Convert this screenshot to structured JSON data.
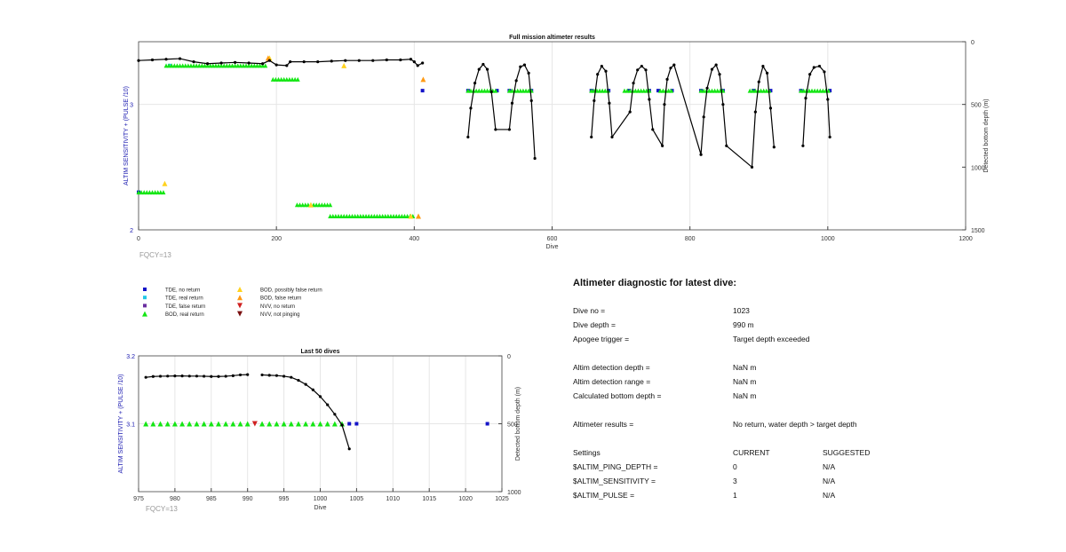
{
  "colors": {
    "tde_no": "#1414c8",
    "tde_real": "#23c8e6",
    "tde_false": "#6a2ea0",
    "bod_real": "#14e614",
    "bod_possibly_false": "#ffd21e",
    "bod_false": "#ff9a14",
    "nvv_no": "#d02020",
    "nvv_not": "#7a0f0f",
    "profile": "#000000",
    "left_axis": "#1a1ab0"
  },
  "fqcy_label_top": "FQCY=13",
  "fqcy_label_bottom": "FQCY=13",
  "legend": [
    {
      "label": "TDE, no return",
      "marker": "square",
      "color_key": "tde_no"
    },
    {
      "label": "TDE, real return",
      "marker": "square",
      "color_key": "tde_real"
    },
    {
      "label": "TDE, false return",
      "marker": "square",
      "color_key": "tde_false"
    },
    {
      "label": "BOD, real return",
      "marker": "triangle-up",
      "color_key": "bod_real"
    },
    {
      "label": "BOD, possibly false return",
      "marker": "triangle-up",
      "color_key": "bod_possibly_false"
    },
    {
      "label": "BOD, false return",
      "marker": "triangle-up",
      "color_key": "bod_false"
    },
    {
      "label": "NVV, no return",
      "marker": "triangle-down",
      "color_key": "nvv_no"
    },
    {
      "label": "NVV, not pinging",
      "marker": "triangle-down",
      "color_key": "nvv_not"
    }
  ],
  "chart_data": [
    {
      "type": "scatter",
      "title": "Full mission altimeter results",
      "xlabel": "Dive",
      "ylabel_left": "ALTIM SENSITIVITY + (PULSE /10)",
      "ylabel_right": "Detected bottom depth (m)",
      "xlim": [
        0,
        1200
      ],
      "ylim_left": [
        2,
        3.5
      ],
      "ylim_right": [
        1500,
        0
      ],
      "xticks": [
        0,
        200,
        400,
        600,
        800,
        1000,
        1200
      ],
      "yticks_left": [
        2,
        3
      ],
      "yticks_right": [
        0,
        500,
        1000,
        1500
      ],
      "grid": true,
      "depth_profile": [
        [
          0,
          150
        ],
        [
          20,
          145
        ],
        [
          40,
          140
        ],
        [
          60,
          135
        ],
        [
          80,
          160
        ],
        [
          100,
          175
        ],
        [
          120,
          170
        ],
        [
          140,
          165
        ],
        [
          160,
          170
        ],
        [
          180,
          175
        ],
        [
          190,
          150
        ],
        [
          200,
          185
        ],
        [
          215,
          190
        ],
        [
          220,
          160
        ],
        [
          240,
          160
        ],
        [
          260,
          160
        ],
        [
          280,
          155
        ],
        [
          300,
          150
        ],
        [
          320,
          150
        ],
        [
          340,
          150
        ],
        [
          360,
          145
        ],
        [
          380,
          145
        ],
        [
          395,
          140
        ],
        [
          400,
          160
        ],
        [
          405,
          190
        ],
        [
          412,
          170
        ],
        [
          478,
          760
        ],
        [
          482,
          530
        ],
        [
          488,
          330
        ],
        [
          494,
          220
        ],
        [
          500,
          180
        ],
        [
          506,
          220
        ],
        [
          512,
          400
        ],
        [
          518,
          700
        ],
        [
          538,
          700
        ],
        [
          542,
          490
        ],
        [
          548,
          310
        ],
        [
          554,
          200
        ],
        [
          560,
          185
        ],
        [
          566,
          250
        ],
        [
          570,
          470
        ],
        [
          575,
          930
        ],
        [
          657,
          760
        ],
        [
          661,
          470
        ],
        [
          666,
          260
        ],
        [
          672,
          195
        ],
        [
          678,
          235
        ],
        [
          683,
          490
        ],
        [
          687,
          760
        ],
        [
          713,
          560
        ],
        [
          718,
          330
        ],
        [
          724,
          225
        ],
        [
          730,
          195
        ],
        [
          736,
          225
        ],
        [
          741,
          460
        ],
        [
          746,
          700
        ],
        [
          760,
          830
        ],
        [
          763,
          500
        ],
        [
          767,
          300
        ],
        [
          772,
          210
        ],
        [
          777,
          185
        ],
        [
          816,
          900
        ],
        [
          820,
          600
        ],
        [
          825,
          370
        ],
        [
          832,
          220
        ],
        [
          838,
          185
        ],
        [
          843,
          260
        ],
        [
          848,
          500
        ],
        [
          853,
          830
        ],
        [
          890,
          1000
        ],
        [
          895,
          560
        ],
        [
          900,
          320
        ],
        [
          906,
          195
        ],
        [
          912,
          250
        ],
        [
          917,
          530
        ],
        [
          922,
          840
        ],
        [
          964,
          830
        ],
        [
          968,
          450
        ],
        [
          974,
          260
        ],
        [
          980,
          205
        ],
        [
          988,
          195
        ],
        [
          995,
          240
        ],
        [
          1000,
          460
        ],
        [
          1003,
          760
        ]
      ],
      "markers": [
        {
          "kind": "tde_no",
          "points": [
            [
              0,
              2.3
            ],
            [
              412,
              3.11
            ],
            [
              478,
              3.11
            ],
            [
              520,
              3.11
            ],
            [
              538,
              3.11
            ],
            [
              570,
              3.11
            ],
            [
              657,
              3.11
            ],
            [
              682,
              3.11
            ],
            [
              712,
              3.11
            ],
            [
              741,
              3.11
            ],
            [
              754,
              3.11
            ],
            [
              774,
              3.11
            ],
            [
              816,
              3.11
            ],
            [
              848,
              3.11
            ],
            [
              892,
              3.11
            ],
            [
              917,
              3.11
            ],
            [
              961,
              3.11
            ],
            [
              1003,
              3.11
            ]
          ]
        },
        {
          "kind": "tde_real",
          "points": [
            [
              45,
              3.31
            ]
          ]
        },
        {
          "kind": "bod_real",
          "x_ranges": [
            [
              0,
              38,
              2.3
            ],
            [
              40,
              185,
              3.31
            ],
            [
              195,
              233,
              3.2
            ],
            [
              230,
              280,
              2.2
            ],
            [
              278,
              400,
              2.11
            ],
            [
              478,
              520,
              3.11
            ],
            [
              538,
              570,
              3.11
            ],
            [
              657,
              682,
              3.11
            ],
            [
              705,
              741,
              3.11
            ],
            [
              757,
              774,
              3.11
            ],
            [
              816,
              848,
              3.11
            ],
            [
              887,
              917,
              3.11
            ],
            [
              961,
              1001,
              3.11
            ]
          ]
        },
        {
          "kind": "bod_possibly_false",
          "points": [
            [
              38,
              2.37
            ],
            [
              190,
              3.37
            ],
            [
              298,
              3.31
            ],
            [
              250,
              2.2
            ],
            [
              395,
              2.11
            ]
          ]
        },
        {
          "kind": "bod_false",
          "points": [
            [
              413,
              3.2
            ],
            [
              188,
              3.37
            ],
            [
              406,
              2.11
            ]
          ]
        }
      ]
    },
    {
      "type": "scatter",
      "title": "Last 50 dives",
      "xlabel": "Dive",
      "ylabel_left": "ALTIM SENSITIVITY + (PULSE /10)",
      "ylabel_right": "Detected bottom depth (m)",
      "xlim": [
        975,
        1025
      ],
      "ylim_left": [
        3.0,
        3.2
      ],
      "ylim_right": [
        1000,
        0
      ],
      "xticks": [
        975,
        980,
        985,
        990,
        995,
        1000,
        1005,
        1010,
        1015,
        1020,
        1025
      ],
      "yticks_left": [
        3.1,
        3.2
      ],
      "yticks_right": [
        0,
        500,
        1000
      ],
      "grid": true,
      "depth_profile_segments": [
        [
          [
            976,
            158
          ],
          [
            977,
            152
          ],
          [
            978,
            150
          ],
          [
            979,
            149
          ],
          [
            980,
            148
          ],
          [
            981,
            148
          ],
          [
            982,
            149
          ],
          [
            983,
            149
          ],
          [
            984,
            150
          ],
          [
            985,
            152
          ],
          [
            986,
            152
          ],
          [
            987,
            150
          ],
          [
            988,
            146
          ],
          [
            989,
            140
          ],
          [
            990,
            138
          ]
        ],
        [
          [
            992,
            140
          ],
          [
            993,
            143
          ],
          [
            994,
            145
          ],
          [
            995,
            150
          ],
          [
            996,
            158
          ],
          [
            997,
            180
          ],
          [
            998,
            210
          ],
          [
            999,
            250
          ],
          [
            1000,
            300
          ],
          [
            1001,
            360
          ],
          [
            1002,
            430
          ],
          [
            1003,
            510
          ],
          [
            1004,
            685
          ]
        ]
      ],
      "bod_real": [
        976,
        977,
        978,
        979,
        980,
        981,
        982,
        983,
        984,
        985,
        986,
        987,
        988,
        989,
        990,
        992,
        993,
        994,
        995,
        996,
        997,
        998,
        999,
        1000,
        1001,
        1002,
        1003
      ],
      "nvv_no": [
        991
      ],
      "tde_no": [
        1004,
        1005,
        1023
      ],
      "marker_level": 3.1
    }
  ],
  "diagnostic": {
    "title": "Altimeter diagnostic for latest dive:",
    "rows": [
      {
        "label": "Dive no =",
        "value": "1023"
      },
      {
        "label": "Dive depth =",
        "value": "990 m"
      },
      {
        "label": "Apogee trigger =",
        "value": "Target depth exceeded"
      },
      {
        "label": "",
        "value": ""
      },
      {
        "label": "Altim detection depth =",
        "value": "NaN m"
      },
      {
        "label": "Altim detection range =",
        "value": "NaN m"
      },
      {
        "label": "Calculated bottom depth =",
        "value": "NaN m"
      },
      {
        "label": "",
        "value": ""
      },
      {
        "label": "Altimeter results =",
        "value": "No return, water depth > target depth"
      },
      {
        "label": "",
        "value": ""
      }
    ],
    "settings_header": {
      "label": "Settings",
      "current": "CURRENT",
      "suggested": "SUGGESTED"
    },
    "settings": [
      {
        "name": "$ALTIM_PING_DEPTH =",
        "current": "0",
        "suggested": "N/A"
      },
      {
        "name": "$ALTIM_SENSITIVITY =",
        "current": "3",
        "suggested": "N/A"
      },
      {
        "name": "$ALTIM_PULSE =",
        "current": "1",
        "suggested": "N/A"
      }
    ]
  }
}
